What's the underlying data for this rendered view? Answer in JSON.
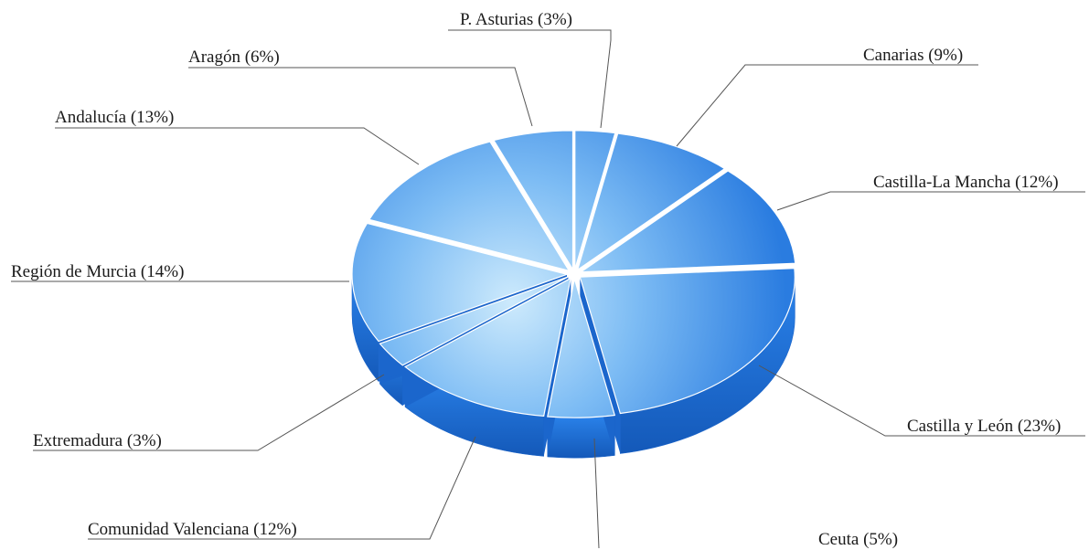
{
  "chart_data": {
    "type": "pie",
    "style": "3d-exploded",
    "title": "",
    "unit": "%",
    "slices": [
      {
        "label": "P. Asturias (3%)",
        "name": "P. Asturias",
        "value": 3
      },
      {
        "label": "Canarias (9%)",
        "name": "Canarias",
        "value": 9
      },
      {
        "label": "Castilla-La Mancha (12%)",
        "name": "Castilla-La Mancha",
        "value": 12
      },
      {
        "label": "Castilla y León (23%)",
        "name": "Castilla y León",
        "value": 23
      },
      {
        "label": "Ceuta (5%)",
        "name": "Ceuta",
        "value": 5
      },
      {
        "label": "Comunidad Valenciana (12%)",
        "name": "Comunidad Valenciana",
        "value": 12
      },
      {
        "label": "Extremadura (3%)",
        "name": "Extremadura",
        "value": 3
      },
      {
        "label": "Región de Murcia (14%)",
        "name": "Región de Murcia",
        "value": 14
      },
      {
        "label": "Andalucía (13%)",
        "name": "Andalucía",
        "value": 13
      },
      {
        "label": "Aragón (6%)",
        "name": "Aragón",
        "value": 6
      }
    ],
    "colors": {
      "top_center": "#c4e6fb",
      "top_edge": "#2f80e0",
      "side": "#1d6fd8",
      "side_dark": "#1458b8"
    },
    "legend": "none"
  }
}
